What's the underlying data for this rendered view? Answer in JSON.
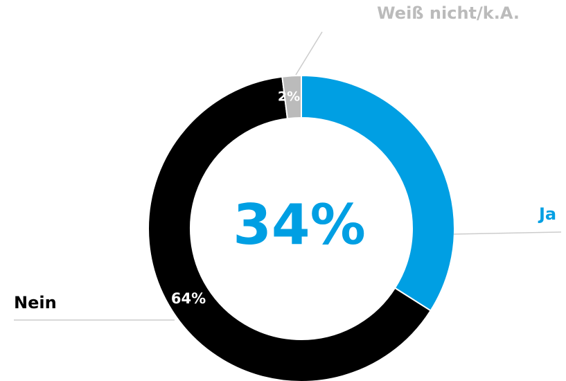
{
  "chart_data": {
    "type": "donut",
    "categories": [
      "Ja",
      "Nein",
      "Weiß nicht/k.A."
    ],
    "values": [
      34,
      64,
      2
    ],
    "value_labels": [
      "34%",
      "64%",
      "2%"
    ],
    "colors": [
      "#009fe3",
      "#000000",
      "#bbbbbb"
    ]
  }
}
